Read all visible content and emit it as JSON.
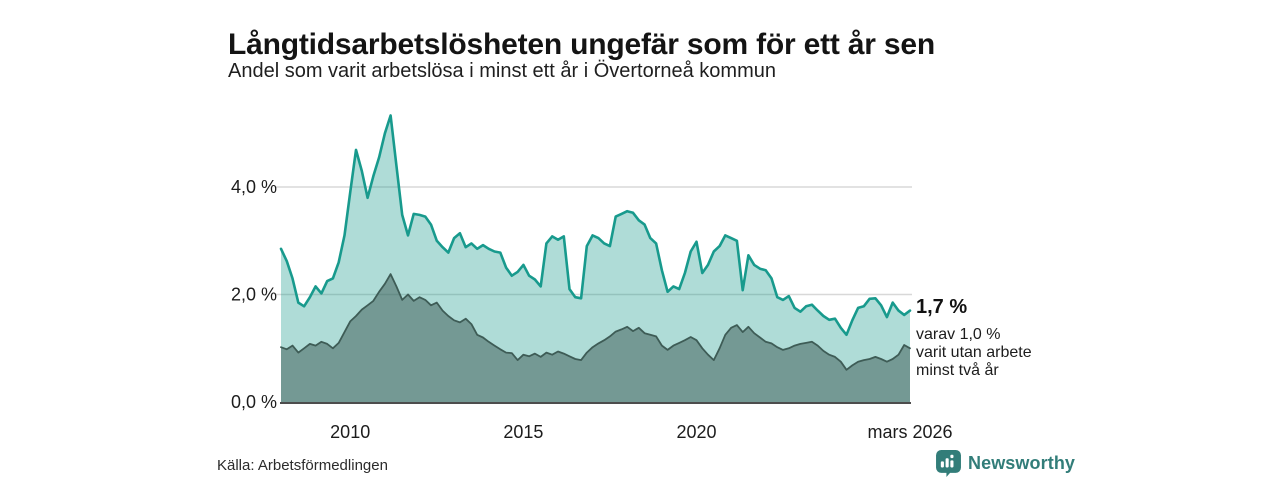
{
  "header": {
    "title": "Långtidsarbetslösheten ungefär som för ett år sen",
    "subtitle": "Andel som varit arbetslösa i minst ett år i Övertorneå kommun"
  },
  "chart_data": {
    "type": "area",
    "title": "Långtidsarbetslösheten ungefär som för ett år sen",
    "subtitle": "Andel som varit arbetslösa i minst ett år i Övertorneå kommun",
    "x_start": 2008.0,
    "x_step": 0.166667,
    "x_range": [
      2008.0,
      2026.1667
    ],
    "ylim": [
      0,
      5.6
    ],
    "grid": "horizontal",
    "unit": "%",
    "y_ticks": [
      {
        "value": 0,
        "label": "0,0 %"
      },
      {
        "value": 2,
        "label": "2,0 %"
      },
      {
        "value": 4,
        "label": "4,0 %"
      }
    ],
    "x_ticks": [
      {
        "year": 2010,
        "label": "2010"
      },
      {
        "year": 2015,
        "label": "2015"
      },
      {
        "year": 2020,
        "label": "2020"
      },
      {
        "year": 2026.1667,
        "label": "mars 2026"
      }
    ],
    "colors": {
      "line_total": "#189a8d",
      "fill_total": "rgba(26,156,141,0.35)",
      "line_two_years": "#3e5c56",
      "fill_two_years": "rgba(62,92,86,0.52)",
      "gridline": "#d8d8d8",
      "axis": "#4d4d4d"
    },
    "series": [
      {
        "name": "minst ett år",
        "values": [
          2.85,
          2.62,
          2.3,
          1.85,
          1.78,
          1.95,
          2.15,
          2.02,
          2.25,
          2.3,
          2.6,
          3.1,
          3.9,
          4.69,
          4.3,
          3.8,
          4.2,
          4.55,
          5.0,
          5.33,
          4.4,
          3.48,
          3.1,
          3.5,
          3.48,
          3.45,
          3.3,
          3.0,
          2.88,
          2.78,
          3.05,
          3.14,
          2.88,
          2.95,
          2.85,
          2.92,
          2.85,
          2.8,
          2.78,
          2.5,
          2.35,
          2.42,
          2.55,
          2.35,
          2.28,
          2.15,
          2.95,
          3.08,
          3.02,
          3.08,
          2.1,
          1.95,
          1.93,
          2.9,
          3.1,
          3.05,
          2.95,
          2.9,
          3.45,
          3.5,
          3.55,
          3.52,
          3.38,
          3.3,
          3.05,
          2.95,
          2.45,
          2.05,
          2.15,
          2.1,
          2.4,
          2.8,
          2.98,
          2.4,
          2.55,
          2.8,
          2.9,
          3.1,
          3.05,
          3.0,
          2.08,
          2.73,
          2.55,
          2.48,
          2.45,
          2.3,
          1.95,
          1.9,
          1.97,
          1.75,
          1.68,
          1.78,
          1.81,
          1.7,
          1.6,
          1.53,
          1.55,
          1.38,
          1.25,
          1.52,
          1.75,
          1.78,
          1.92,
          1.93,
          1.8,
          1.58,
          1.85,
          1.7,
          1.62,
          1.7
        ]
      },
      {
        "name": "minst två år",
        "values": [
          1.02,
          0.98,
          1.05,
          0.92,
          1.0,
          1.08,
          1.05,
          1.12,
          1.08,
          1.0,
          1.1,
          1.3,
          1.5,
          1.6,
          1.72,
          1.8,
          1.88,
          2.05,
          2.2,
          2.38,
          2.15,
          1.9,
          2.0,
          1.88,
          1.95,
          1.9,
          1.8,
          1.85,
          1.7,
          1.6,
          1.52,
          1.48,
          1.55,
          1.45,
          1.25,
          1.2,
          1.12,
          1.05,
          0.98,
          0.92,
          0.91,
          0.78,
          0.88,
          0.85,
          0.9,
          0.84,
          0.92,
          0.88,
          0.94,
          0.9,
          0.85,
          0.8,
          0.78,
          0.92,
          1.02,
          1.09,
          1.15,
          1.22,
          1.31,
          1.35,
          1.4,
          1.32,
          1.38,
          1.28,
          1.25,
          1.22,
          1.05,
          0.97,
          1.05,
          1.1,
          1.15,
          1.21,
          1.15,
          1.0,
          0.88,
          0.78,
          1.0,
          1.25,
          1.38,
          1.43,
          1.3,
          1.4,
          1.28,
          1.2,
          1.12,
          1.09,
          1.02,
          0.97,
          1.0,
          1.05,
          1.08,
          1.1,
          1.12,
          1.05,
          0.95,
          0.88,
          0.84,
          0.75,
          0.6,
          0.68,
          0.75,
          0.78,
          0.8,
          0.84,
          0.8,
          0.75,
          0.8,
          0.88,
          1.06,
          1.0
        ]
      }
    ],
    "annotation": {
      "value_label": "1,7 %",
      "lines": [
        "varav 1,0 %",
        "varit utan arbete",
        "minst två år"
      ]
    }
  },
  "footer": {
    "source": "Källa: Arbetsförmedlingen",
    "brand": "Newsworthy",
    "brand_color": "#327d79"
  }
}
